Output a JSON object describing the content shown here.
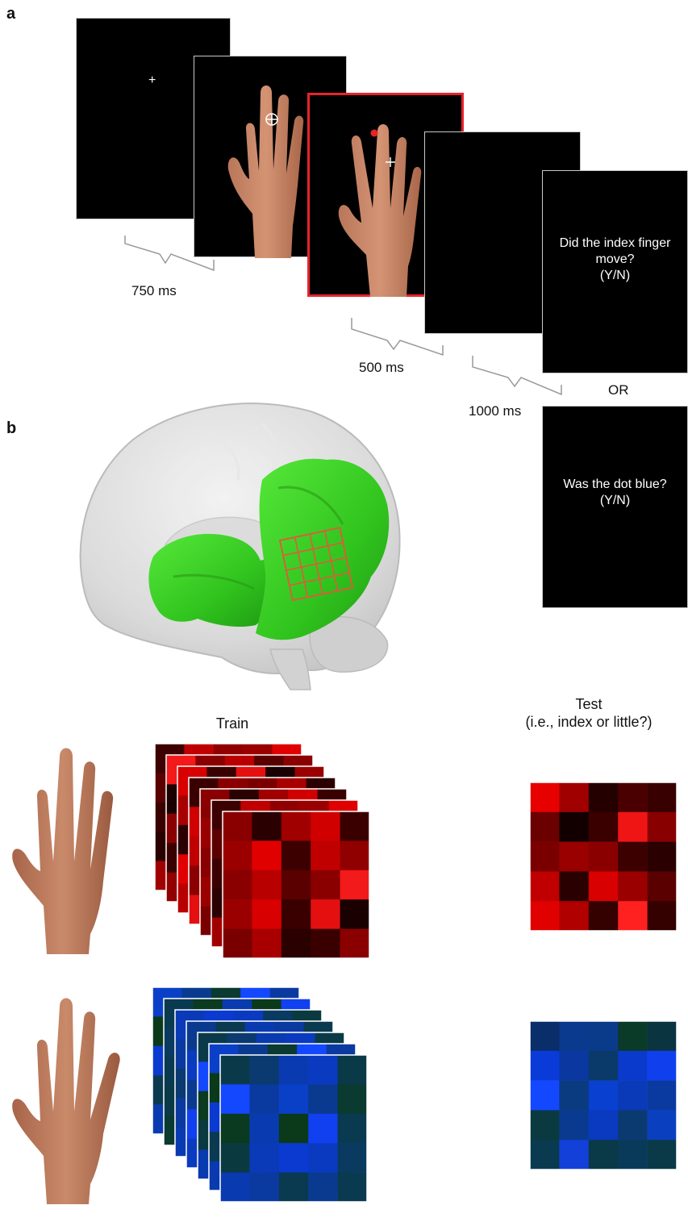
{
  "panel_a": {
    "letter": "a",
    "fixation_symbol": "+",
    "durations": {
      "first": "750 ms",
      "second": "500 ms",
      "third": "1000 ms"
    },
    "question_1": [
      "Did the index finger",
      "move?",
      "(Y/N)"
    ],
    "or_label": "OR",
    "question_2": [
      "Was the dot blue?",
      "(Y/N)"
    ],
    "dot_color": "#e8232a",
    "highlight_border": "#e8232a"
  },
  "panel_b": {
    "letter": "b",
    "roi_color": "#3fd12a",
    "grid_color": "#e8553a",
    "train_label": "Train",
    "test_label": [
      "Test",
      "(i.e., index or little?)"
    ],
    "red_test_matrix": [
      [
        "#e60000",
        "#a00000",
        "#250000",
        "#4a0000",
        "#380000"
      ],
      [
        "#6a0000",
        "#120000",
        "#3a0000",
        "#f01515",
        "#880000"
      ],
      [
        "#7a0000",
        "#9a0000",
        "#8a0000",
        "#3c0000",
        "#2a0000"
      ],
      [
        "#c00000",
        "#2a0000",
        "#d80000",
        "#9a0000",
        "#5a0000"
      ],
      [
        "#e00000",
        "#b00000",
        "#340000",
        "#ff2020",
        "#340000"
      ]
    ],
    "red_front_matrix": [
      [
        "#8a0000",
        "#2a0000",
        "#a00000",
        "#d00000",
        "#3a0000"
      ],
      [
        "#9a0000",
        "#e00000",
        "#3c0000",
        "#c00000",
        "#900000"
      ],
      [
        "#8a0000",
        "#b80000",
        "#5a0000",
        "#8a0000",
        "#f21a1a"
      ],
      [
        "#9a0000",
        "#d80000",
        "#3a0000",
        "#e41010",
        "#1a0000"
      ],
      [
        "#7a0000",
        "#a80000",
        "#2a0000",
        "#3a0000",
        "#8a0000"
      ]
    ],
    "blue_test_matrix": [
      [
        "#0a2e6a",
        "#0a3a8e",
        "#0a3a8a",
        "#0a3a28",
        "#0a3440"
      ],
      [
        "#0a3ad8",
        "#0a38a0",
        "#0a3a6a",
        "#0a3acc",
        "#1040ee"
      ],
      [
        "#1448ff",
        "#0a3a80",
        "#0a40d0",
        "#0a3ab8",
        "#0a3aa0"
      ],
      [
        "#0a3a40",
        "#0a3a90",
        "#0a3ac0",
        "#0a3a70",
        "#0a40c0"
      ],
      [
        "#0a3a50",
        "#1240d8",
        "#0a3a48",
        "#0a3a5a",
        "#0a3a48"
      ]
    ],
    "blue_front_matrix": [
      [
        "#0a3a4a",
        "#0a3a70",
        "#0a3ab0",
        "#0a3ac0",
        "#0a3a48"
      ],
      [
        "#1448ff",
        "#0a3aa0",
        "#0a40c8",
        "#0a3a90",
        "#0a3a30"
      ],
      [
        "#0a3a20",
        "#0a3ab0",
        "#0a3a1a",
        "#1040f0",
        "#0a3a50"
      ],
      [
        "#0a3a40",
        "#0a3ab8",
        "#0a3ad0",
        "#0a3ac0",
        "#0a3a60"
      ],
      [
        "#0a3ab0",
        "#0a3aa0",
        "#0a3a50",
        "#0a3a90",
        "#0a3a50"
      ]
    ]
  }
}
